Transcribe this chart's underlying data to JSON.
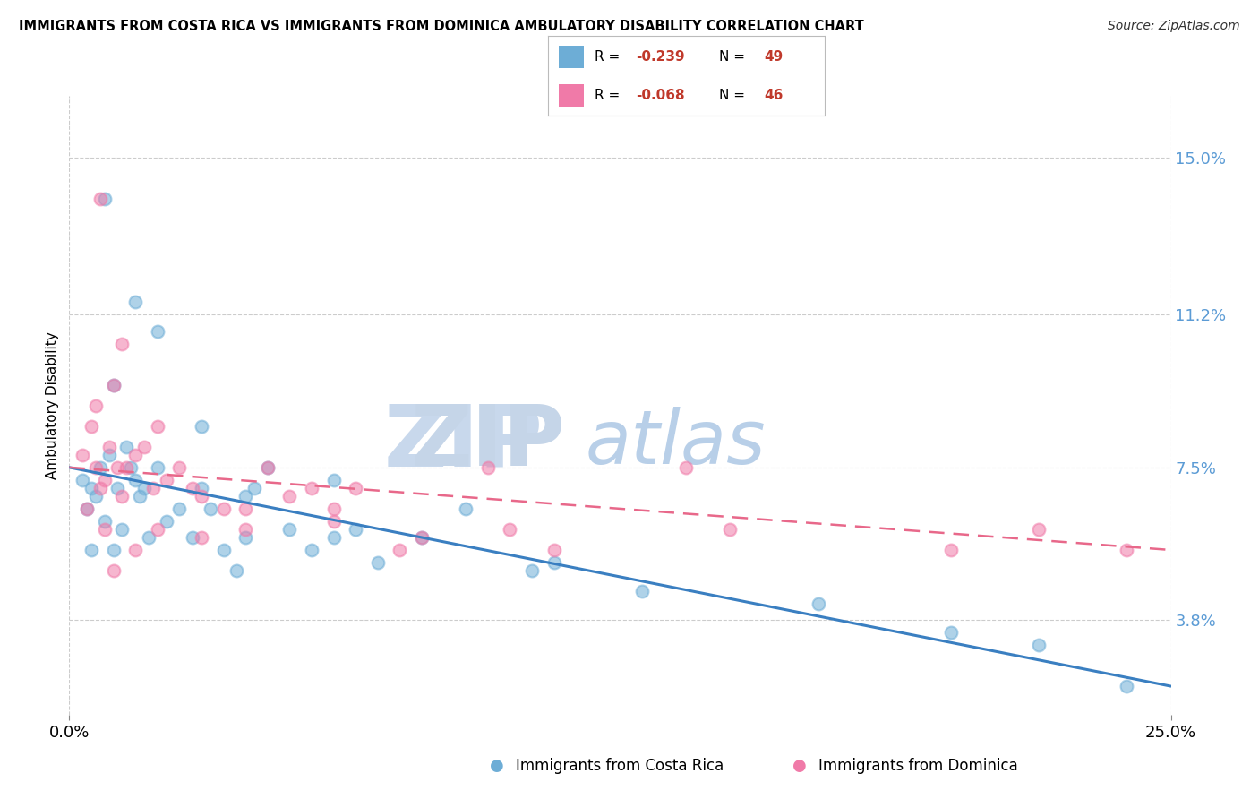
{
  "title": "IMMIGRANTS FROM COSTA RICA VS IMMIGRANTS FROM DOMINICA AMBULATORY DISABILITY CORRELATION CHART",
  "source": "Source: ZipAtlas.com",
  "ylabel": "Ambulatory Disability",
  "color_blue": "#6dadd6",
  "color_pink": "#f07aa8",
  "xlim": [
    0.0,
    25.0
  ],
  "ylim": [
    1.5,
    16.5
  ],
  "xtick_labels": [
    "0.0%",
    "25.0%"
  ],
  "xtick_vals": [
    0.0,
    25.0
  ],
  "ytick_labels": [
    "3.8%",
    "7.5%",
    "11.2%",
    "15.0%"
  ],
  "ytick_values": [
    3.8,
    7.5,
    11.2,
    15.0
  ],
  "cr_r": "-0.239",
  "cr_n": "49",
  "dom_r": "-0.068",
  "dom_n": "46",
  "bottom_labels": [
    "Immigrants from Costa Rica",
    "Immigrants from Dominica"
  ],
  "costa_rica_x": [
    0.3,
    0.4,
    0.5,
    0.6,
    0.7,
    0.8,
    0.9,
    1.0,
    1.1,
    1.2,
    1.3,
    1.4,
    1.5,
    1.6,
    1.7,
    1.8,
    2.0,
    2.2,
    2.5,
    2.8,
    3.0,
    3.2,
    3.5,
    3.8,
    4.0,
    4.2,
    4.5,
    5.0,
    5.5,
    6.0,
    6.5,
    7.0,
    8.0,
    9.0,
    10.5,
    11.0,
    13.0,
    17.0,
    20.0,
    22.0,
    24.0,
    0.5,
    0.8,
    1.0,
    1.5,
    2.0,
    3.0,
    4.0,
    6.0
  ],
  "costa_rica_y": [
    7.2,
    6.5,
    7.0,
    6.8,
    7.5,
    6.2,
    7.8,
    5.5,
    7.0,
    6.0,
    8.0,
    7.5,
    7.2,
    6.8,
    7.0,
    5.8,
    7.5,
    6.2,
    6.5,
    5.8,
    7.0,
    6.5,
    5.5,
    5.0,
    5.8,
    7.0,
    7.5,
    6.0,
    5.5,
    5.8,
    6.0,
    5.2,
    5.8,
    6.5,
    5.0,
    5.2,
    4.5,
    4.2,
    3.5,
    3.2,
    2.2,
    5.5,
    14.0,
    9.5,
    11.5,
    10.8,
    8.5,
    6.8,
    7.2
  ],
  "dominica_x": [
    0.3,
    0.5,
    0.6,
    0.7,
    0.8,
    0.9,
    1.0,
    1.1,
    1.2,
    1.3,
    1.5,
    1.7,
    1.9,
    2.0,
    2.2,
    2.5,
    2.8,
    3.0,
    3.5,
    4.0,
    4.5,
    5.0,
    5.5,
    6.0,
    6.5,
    7.5,
    9.5,
    11.0,
    14.0,
    0.4,
    0.6,
    0.8,
    1.0,
    1.5,
    2.0,
    3.0,
    4.0,
    6.0,
    8.0,
    10.0,
    15.0,
    20.0,
    22.0,
    24.0,
    0.7,
    1.2
  ],
  "dominica_y": [
    7.8,
    8.5,
    7.5,
    7.0,
    7.2,
    8.0,
    9.5,
    7.5,
    6.8,
    7.5,
    7.8,
    8.0,
    7.0,
    8.5,
    7.2,
    7.5,
    7.0,
    6.8,
    6.5,
    6.0,
    7.5,
    6.8,
    7.0,
    6.5,
    7.0,
    5.5,
    7.5,
    5.5,
    7.5,
    6.5,
    9.0,
    6.0,
    5.0,
    5.5,
    6.0,
    5.8,
    6.5,
    6.2,
    5.8,
    6.0,
    6.0,
    5.5,
    6.0,
    5.5,
    14.0,
    10.5
  ]
}
